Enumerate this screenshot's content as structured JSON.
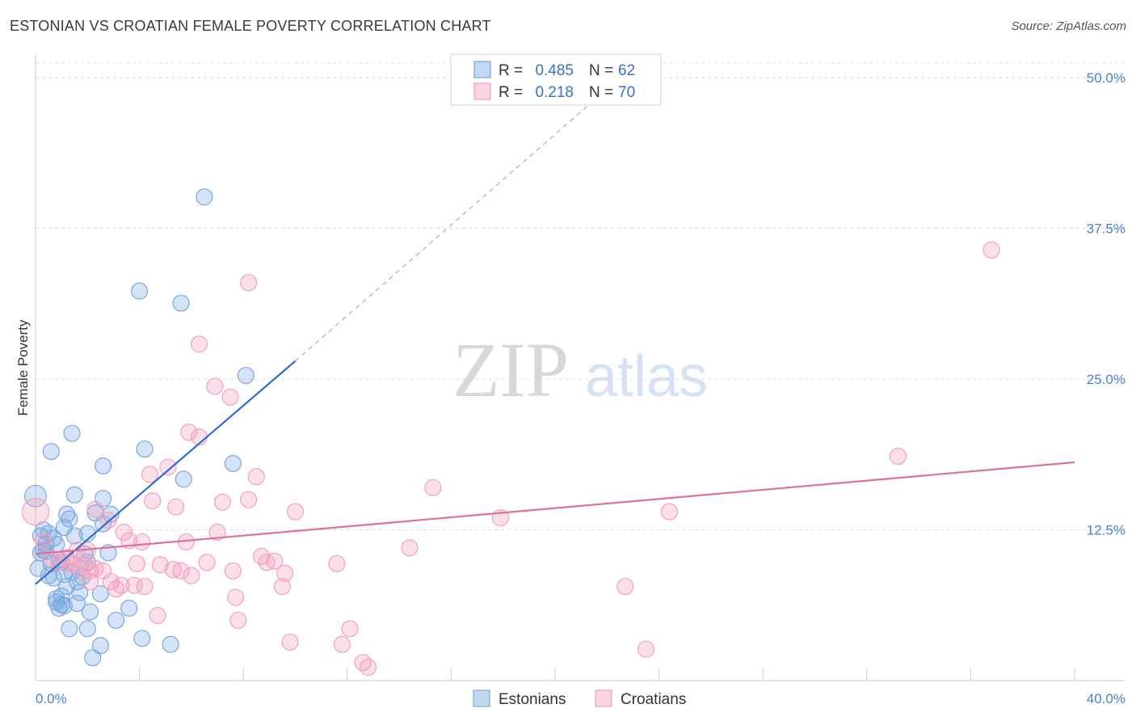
{
  "title": "ESTONIAN VS CROATIAN FEMALE POVERTY CORRELATION CHART",
  "source": "Source: ZipAtlas.com",
  "watermark": {
    "zip": "ZIP",
    "atlas": "atlas"
  },
  "chart_data": {
    "type": "scatter",
    "ylabel": "Female Poverty",
    "xlabel": "",
    "xlim": [
      0,
      40
    ],
    "ylim": [
      0,
      50
    ],
    "x_tick_labels": [
      {
        "value": 0,
        "label": "0.0%"
      },
      {
        "value": 40,
        "label": "40.0%"
      }
    ],
    "y_tick_labels": [
      {
        "value": 12.5,
        "label": "12.5%"
      },
      {
        "value": 25,
        "label": "25.0%"
      },
      {
        "value": 37.5,
        "label": "37.5%"
      },
      {
        "value": 50,
        "label": "50.0%"
      }
    ],
    "grid": true,
    "legend_position": "top-center",
    "series": [
      {
        "name": "Estonians",
        "color": "#7aa7e0",
        "line_color": "#2d6fd0",
        "r_label": "R =",
        "r_value": "0.485",
        "n_label": "N =",
        "n_value": "62",
        "trend": {
          "x0": 0,
          "y0": 8.0,
          "x1": 10.0,
          "y1": 26.5,
          "dashed_to_x": 22.5,
          "dashed_to_y": 50
        },
        "points": [
          [
            0.0,
            15.3,
            1.6
          ],
          [
            0.1,
            9.3,
            1.2
          ],
          [
            0.2,
            12.0,
            1.2
          ],
          [
            0.3,
            10.8,
            1.2
          ],
          [
            0.4,
            11.3,
            1.2
          ],
          [
            0.4,
            10.7,
            1.2
          ],
          [
            0.3,
            12.5,
            1.2
          ],
          [
            0.5,
            12.2,
            1.2
          ],
          [
            0.5,
            8.7,
            1.2
          ],
          [
            0.6,
            19.0,
            1.2
          ],
          [
            0.6,
            9.7,
            1.2
          ],
          [
            0.7,
            8.5,
            1.2
          ],
          [
            0.7,
            11.8,
            1.2
          ],
          [
            0.8,
            11.3,
            1.2
          ],
          [
            0.8,
            6.8,
            1.2
          ],
          [
            0.9,
            6.0,
            1.2
          ],
          [
            0.9,
            10.0,
            1.2
          ],
          [
            1.0,
            7.0,
            1.2
          ],
          [
            1.0,
            6.3,
            1.2
          ],
          [
            1.1,
            12.7,
            1.2
          ],
          [
            1.1,
            8.8,
            1.2
          ],
          [
            1.2,
            13.8,
            1.2
          ],
          [
            1.3,
            13.4,
            1.2
          ],
          [
            1.2,
            7.8,
            1.2
          ],
          [
            1.3,
            4.3,
            1.2
          ],
          [
            1.4,
            20.5,
            1.2
          ],
          [
            1.5,
            15.4,
            1.2
          ],
          [
            1.5,
            12.0,
            1.2
          ],
          [
            1.6,
            6.4,
            1.2
          ],
          [
            1.6,
            8.2,
            1.2
          ],
          [
            1.7,
            7.3,
            1.2
          ],
          [
            1.8,
            8.6,
            1.2
          ],
          [
            1.9,
            10.5,
            1.2
          ],
          [
            2.0,
            9.8,
            1.2
          ],
          [
            2.0,
            12.2,
            1.2
          ],
          [
            2.0,
            4.3,
            1.2
          ],
          [
            2.1,
            5.7,
            1.2
          ],
          [
            2.2,
            1.9,
            1.2
          ],
          [
            2.3,
            13.9,
            1.2
          ],
          [
            2.5,
            7.2,
            1.2
          ],
          [
            2.5,
            2.9,
            1.2
          ],
          [
            2.6,
            17.8,
            1.2
          ],
          [
            2.6,
            13.0,
            1.2
          ],
          [
            2.6,
            15.1,
            1.2
          ],
          [
            2.8,
            10.6,
            1.2
          ],
          [
            2.9,
            13.8,
            1.2
          ],
          [
            3.1,
            5.0,
            1.2
          ],
          [
            3.6,
            6.0,
            1.2
          ],
          [
            4.0,
            32.3,
            1.2
          ],
          [
            4.1,
            3.5,
            1.2
          ],
          [
            4.2,
            19.2,
            1.2
          ],
          [
            5.2,
            3.0,
            1.2
          ],
          [
            5.6,
            31.3,
            1.2
          ],
          [
            5.7,
            16.7,
            1.2
          ],
          [
            6.5,
            40.1,
            1.2
          ],
          [
            7.6,
            18.0,
            1.2
          ],
          [
            8.1,
            25.3,
            1.2
          ],
          [
            1.0,
            9.8,
            1.2
          ],
          [
            1.1,
            6.2,
            1.2
          ],
          [
            0.2,
            10.6,
            1.2
          ],
          [
            0.8,
            6.5,
            1.2
          ],
          [
            1.4,
            9.0,
            1.2
          ]
        ]
      },
      {
        "name": "Croatians",
        "color": "#f2a0bd",
        "line_color": "#e0709a",
        "r_label": "R =",
        "r_value": "0.218",
        "n_label": "N =",
        "n_value": "70",
        "trend": {
          "x0": 0,
          "y0": 10.5,
          "x1": 40.0,
          "y1": 18.1
        },
        "points": [
          [
            0.0,
            14.0,
            2.0
          ],
          [
            0.3,
            11.6,
            1.2
          ],
          [
            0.6,
            10.1,
            1.2
          ],
          [
            0.9,
            9.8,
            1.2
          ],
          [
            1.2,
            10.2,
            1.2
          ],
          [
            1.4,
            9.7,
            1.2
          ],
          [
            1.6,
            10.8,
            1.2
          ],
          [
            1.7,
            9.3,
            1.2
          ],
          [
            1.9,
            9.6,
            1.2
          ],
          [
            2.0,
            10.8,
            1.2
          ],
          [
            2.1,
            9.1,
            1.2
          ],
          [
            2.1,
            8.2,
            1.2
          ],
          [
            2.3,
            9.3,
            1.2
          ],
          [
            2.3,
            14.2,
            1.2
          ],
          [
            2.6,
            9.1,
            1.2
          ],
          [
            2.8,
            13.3,
            1.2
          ],
          [
            2.9,
            8.2,
            1.2
          ],
          [
            3.1,
            7.6,
            1.2
          ],
          [
            3.3,
            7.9,
            1.2
          ],
          [
            3.4,
            12.3,
            1.2
          ],
          [
            3.6,
            11.6,
            1.2
          ],
          [
            3.8,
            7.9,
            1.2
          ],
          [
            3.9,
            9.7,
            1.2
          ],
          [
            4.1,
            11.5,
            1.2
          ],
          [
            4.2,
            7.8,
            1.2
          ],
          [
            4.4,
            17.1,
            1.2
          ],
          [
            4.5,
            14.9,
            1.2
          ],
          [
            4.7,
            5.4,
            1.2
          ],
          [
            4.8,
            9.6,
            1.2
          ],
          [
            5.1,
            17.7,
            1.2
          ],
          [
            5.3,
            9.2,
            1.2
          ],
          [
            5.4,
            14.4,
            1.2
          ],
          [
            5.6,
            9.1,
            1.2
          ],
          [
            5.8,
            11.5,
            1.2
          ],
          [
            6.0,
            8.7,
            1.2
          ],
          [
            6.3,
            27.9,
            1.2
          ],
          [
            6.6,
            9.8,
            1.2
          ],
          [
            6.9,
            24.4,
            1.2
          ],
          [
            7.0,
            12.3,
            1.2
          ],
          [
            7.2,
            14.8,
            1.2
          ],
          [
            7.5,
            23.5,
            1.2
          ],
          [
            7.6,
            9.1,
            1.2
          ],
          [
            7.7,
            6.9,
            1.2
          ],
          [
            7.8,
            5.0,
            1.2
          ],
          [
            8.2,
            33.0,
            1.2
          ],
          [
            8.2,
            15.0,
            1.2
          ],
          [
            8.5,
            16.9,
            1.2
          ],
          [
            8.7,
            10.3,
            1.2
          ],
          [
            8.9,
            9.8,
            1.2
          ],
          [
            9.2,
            9.9,
            1.2
          ],
          [
            9.5,
            7.8,
            1.2
          ],
          [
            9.6,
            8.9,
            1.2
          ],
          [
            9.8,
            3.2,
            1.2
          ],
          [
            10.0,
            14.0,
            1.2
          ],
          [
            11.6,
            9.7,
            1.2
          ],
          [
            11.8,
            3.0,
            1.2
          ],
          [
            12.1,
            4.3,
            1.2
          ],
          [
            12.6,
            1.5,
            1.2
          ],
          [
            12.8,
            1.1,
            1.2
          ],
          [
            14.4,
            11.0,
            1.2
          ],
          [
            15.3,
            16.0,
            1.2
          ],
          [
            17.9,
            13.5,
            1.2
          ],
          [
            22.7,
            7.8,
            1.2
          ],
          [
            23.5,
            2.6,
            1.2
          ],
          [
            24.4,
            14.0,
            1.2
          ],
          [
            33.2,
            18.6,
            1.2
          ],
          [
            36.8,
            35.7,
            1.2
          ],
          [
            5.9,
            20.6,
            1.2
          ],
          [
            6.3,
            20.2,
            1.2
          ],
          [
            1.3,
            9.9,
            1.2
          ]
        ]
      }
    ]
  }
}
